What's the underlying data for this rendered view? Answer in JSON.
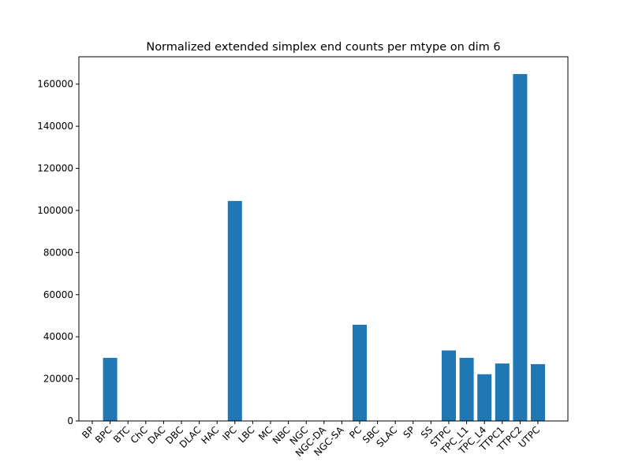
{
  "chart_data": {
    "type": "bar",
    "title": "Normalized extended simplex end counts per mtype on dim 6",
    "xlabel": "",
    "ylabel": "",
    "categories": [
      "BP",
      "BPC",
      "BTC",
      "ChC",
      "DAC",
      "DBC",
      "DLAC",
      "HAC",
      "IPC",
      "LBC",
      "MC",
      "NBC",
      "NGC",
      "NGC-DA",
      "NGC-SA",
      "PC",
      "SBC",
      "SLAC",
      "SP",
      "SS",
      "STPC",
      "TPC_L1",
      "TPC_L4",
      "TTPC1",
      "TTPC2",
      "UTPC"
    ],
    "values": [
      0,
      30000,
      0,
      0,
      0,
      0,
      0,
      0,
      104500,
      0,
      0,
      0,
      0,
      0,
      0,
      45700,
      0,
      0,
      0,
      0,
      33500,
      30000,
      22200,
      27300,
      164800,
      27000
    ],
    "ylim": [
      0,
      173000
    ],
    "yticks": [
      0,
      20000,
      40000,
      60000,
      80000,
      100000,
      120000,
      140000,
      160000
    ],
    "bar_color": "#1f77b4",
    "grid": false
  }
}
